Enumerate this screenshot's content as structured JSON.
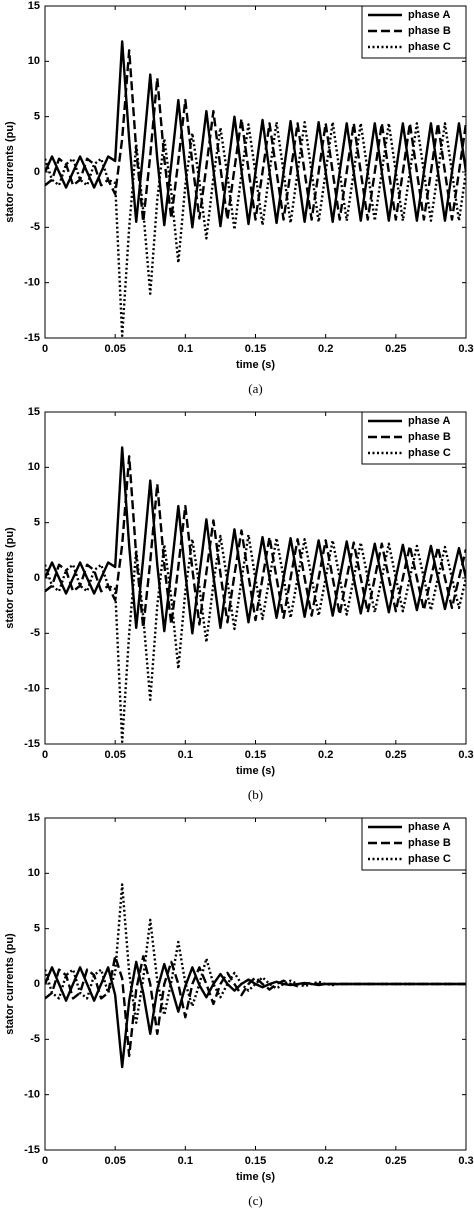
{
  "chart_data": [
    {
      "type": "line",
      "caption": "(a)",
      "xlabel": "time (s)",
      "ylabel": "stator currents (pu)",
      "x": [
        0,
        0.005,
        0.01,
        0.015,
        0.02,
        0.025,
        0.03,
        0.035,
        0.04,
        0.045,
        0.05,
        0.055,
        0.06,
        0.065,
        0.07,
        0.075,
        0.08,
        0.085,
        0.09,
        0.095,
        0.1,
        0.105,
        0.11,
        0.115,
        0.12,
        0.125,
        0.13,
        0.135,
        0.14,
        0.145,
        0.15,
        0.155,
        0.16,
        0.165,
        0.17,
        0.175,
        0.18,
        0.185,
        0.19,
        0.195,
        0.2,
        0.205,
        0.21,
        0.215,
        0.22,
        0.225,
        0.23,
        0.235,
        0.24,
        0.245,
        0.25,
        0.255,
        0.26,
        0.265,
        0.27,
        0.275,
        0.28,
        0.285,
        0.29,
        0.295,
        0.3
      ],
      "xlim": [
        0,
        0.3
      ],
      "ylim": [
        -15,
        15
      ],
      "xticks": [
        0,
        0.05,
        0.1,
        0.15,
        0.2,
        0.25,
        0.3
      ],
      "yticks": [
        -15,
        -10,
        -5,
        0,
        5,
        10,
        15
      ],
      "legend": "upper right",
      "series": [
        {
          "name": "phase A",
          "color": "#000000",
          "dash": "solid",
          "values": [
            0,
            1.4,
            0,
            -1.4,
            0,
            1.4,
            0,
            -1.4,
            0,
            1.4,
            1.0,
            11.8,
            2.9,
            -4.5,
            1.8,
            8.8,
            1.2,
            -4.8,
            0.7,
            6.5,
            0.4,
            -5.0,
            0.3,
            5.5,
            0.2,
            -4.9,
            0.1,
            5.0,
            0.1,
            -4.7,
            0,
            4.7,
            0,
            -4.6,
            0,
            4.6,
            0,
            -4.5,
            0,
            4.5,
            0,
            -4.5,
            0,
            4.4,
            0,
            -4.4,
            0,
            4.4,
            0,
            -4.4,
            0,
            4.4,
            0,
            -4.4,
            0,
            4.4,
            0,
            -4.4,
            0,
            4.4,
            0
          ]
        },
        {
          "name": "phase B",
          "color": "#000000",
          "dash": "dashed",
          "values": [
            -1.2,
            -0.7,
            1.2,
            0.7,
            -1.2,
            -0.7,
            1.2,
            0.7,
            -1.2,
            -0.7,
            -2.0,
            3.0,
            11.0,
            2.0,
            -4.5,
            1.5,
            8.5,
            1.2,
            -4.2,
            1.0,
            6.5,
            0.8,
            -4.2,
            0.5,
            5.5,
            0.4,
            -4.3,
            0.3,
            4.8,
            0.2,
            -4.3,
            0,
            4.4,
            0,
            -4.3,
            0,
            4.4,
            0,
            -4.3,
            0,
            4.4,
            0,
            -4.3,
            0,
            4.4,
            0,
            -4.3,
            0,
            4.4,
            0,
            -4.3,
            0,
            4.4,
            0,
            -4.3,
            0,
            4.4,
            0,
            -4.3,
            0,
            4.4
          ]
        },
        {
          "name": "phase C",
          "color": "#000000",
          "dash": "dotted",
          "values": [
            1.2,
            -0.7,
            -1.2,
            0.7,
            1.2,
            -0.7,
            -1.2,
            0.7,
            1.2,
            -0.7,
            -1.0,
            -14.8,
            -5.0,
            2.5,
            -3.5,
            -11.0,
            -2.5,
            3.0,
            -1.8,
            -8.2,
            -1.2,
            3.5,
            -0.8,
            -6.0,
            -0.5,
            4.0,
            -0.3,
            -5.2,
            -0.2,
            4.3,
            -0.1,
            -4.8,
            0,
            4.5,
            0,
            -4.6,
            0,
            4.5,
            0,
            -4.5,
            0,
            4.5,
            0,
            -4.4,
            0,
            4.4,
            0,
            -4.4,
            0,
            4.4,
            0,
            -4.4,
            0,
            4.4,
            0,
            -4.4,
            0,
            4.4,
            0,
            -4.4,
            0
          ]
        }
      ]
    },
    {
      "type": "line",
      "caption": "(b)",
      "xlabel": "time (s)",
      "ylabel": "stator currents (pu)",
      "x": [
        0,
        0.005,
        0.01,
        0.015,
        0.02,
        0.025,
        0.03,
        0.035,
        0.04,
        0.045,
        0.05,
        0.055,
        0.06,
        0.065,
        0.07,
        0.075,
        0.08,
        0.085,
        0.09,
        0.095,
        0.1,
        0.105,
        0.11,
        0.115,
        0.12,
        0.125,
        0.13,
        0.135,
        0.14,
        0.145,
        0.15,
        0.155,
        0.16,
        0.165,
        0.17,
        0.175,
        0.18,
        0.185,
        0.19,
        0.195,
        0.2,
        0.205,
        0.21,
        0.215,
        0.22,
        0.225,
        0.23,
        0.235,
        0.24,
        0.245,
        0.25,
        0.255,
        0.26,
        0.265,
        0.27,
        0.275,
        0.28,
        0.285,
        0.29,
        0.295,
        0.3
      ],
      "xlim": [
        0,
        0.3
      ],
      "ylim": [
        -15,
        15
      ],
      "xticks": [
        0,
        0.05,
        0.1,
        0.15,
        0.2,
        0.25,
        0.3
      ],
      "yticks": [
        -15,
        -10,
        -5,
        0,
        5,
        10,
        15
      ],
      "legend": "upper right",
      "series": [
        {
          "name": "phase A",
          "color": "#000000",
          "dash": "solid",
          "values": [
            0,
            1.4,
            0,
            -1.4,
            0,
            1.4,
            0,
            -1.4,
            0,
            1.4,
            1.0,
            11.8,
            2.9,
            -4.5,
            1.8,
            8.8,
            1.2,
            -4.8,
            0.7,
            6.5,
            0.4,
            -5.0,
            0.3,
            5.3,
            0.2,
            -4.5,
            0.1,
            4.4,
            0.1,
            -4.0,
            0,
            3.7,
            0,
            -3.6,
            0,
            3.6,
            0,
            -3.5,
            0,
            3.4,
            0,
            -3.4,
            0,
            3.3,
            0,
            -3.2,
            0,
            3.1,
            0,
            -3.1,
            0,
            3.0,
            0,
            -2.9,
            0,
            2.9,
            0,
            -2.8,
            0,
            2.7,
            0
          ]
        },
        {
          "name": "phase B",
          "color": "#000000",
          "dash": "dashed",
          "values": [
            -1.2,
            -0.7,
            1.2,
            0.7,
            -1.2,
            -0.7,
            1.2,
            0.7,
            -1.2,
            -0.7,
            -2.0,
            3.0,
            11.0,
            2.0,
            -4.5,
            1.5,
            8.5,
            1.2,
            -4.2,
            1.0,
            6.5,
            0.8,
            -4.2,
            0.5,
            5.2,
            0.4,
            -4.0,
            0.3,
            4.3,
            0.2,
            -3.8,
            0,
            3.7,
            0,
            -3.6,
            0,
            3.5,
            0,
            -3.4,
            0,
            3.4,
            0,
            -3.3,
            0,
            3.2,
            0,
            -3.1,
            0,
            3.1,
            0,
            -3.0,
            0,
            2.9,
            0,
            -2.9,
            0,
            2.8,
            0,
            -2.7,
            0,
            2.6
          ]
        },
        {
          "name": "phase C",
          "color": "#000000",
          "dash": "dotted",
          "values": [
            1.2,
            -0.7,
            -1.2,
            0.7,
            1.2,
            -0.7,
            -1.2,
            0.7,
            1.2,
            -0.7,
            -1.0,
            -14.8,
            -5.0,
            2.5,
            -3.5,
            -11.0,
            -2.5,
            3.0,
            -1.8,
            -8.2,
            -1.2,
            3.5,
            -0.8,
            -5.8,
            -0.5,
            3.8,
            -0.3,
            -4.6,
            -0.2,
            3.9,
            -0.1,
            -3.7,
            0,
            3.6,
            0,
            -3.6,
            0,
            3.5,
            0,
            -3.4,
            0,
            3.4,
            0,
            -3.3,
            0,
            3.2,
            0,
            -3.1,
            0,
            3.1,
            0,
            -3.0,
            0,
            2.9,
            0,
            -2.9,
            0,
            2.8,
            0,
            -2.7,
            0
          ]
        }
      ]
    },
    {
      "type": "line",
      "caption": "(c)",
      "xlabel": "time (s)",
      "ylabel": "stator currents (pu)",
      "x": [
        0,
        0.005,
        0.01,
        0.015,
        0.02,
        0.025,
        0.03,
        0.035,
        0.04,
        0.045,
        0.05,
        0.055,
        0.06,
        0.065,
        0.07,
        0.075,
        0.08,
        0.085,
        0.09,
        0.095,
        0.1,
        0.105,
        0.11,
        0.115,
        0.12,
        0.125,
        0.13,
        0.135,
        0.14,
        0.145,
        0.15,
        0.155,
        0.16,
        0.165,
        0.17,
        0.175,
        0.18,
        0.185,
        0.19,
        0.195,
        0.2,
        0.205,
        0.21,
        0.215,
        0.22,
        0.225,
        0.23,
        0.235,
        0.24,
        0.245,
        0.25,
        0.255,
        0.26,
        0.265,
        0.27,
        0.275,
        0.28,
        0.285,
        0.29,
        0.295,
        0.3
      ],
      "xlim": [
        0,
        0.3
      ],
      "ylim": [
        -15,
        15
      ],
      "xticks": [
        0,
        0.05,
        0.1,
        0.15,
        0.2,
        0.25,
        0.3
      ],
      "yticks": [
        -15,
        -10,
        -5,
        0,
        5,
        10,
        15
      ],
      "legend": "upper right",
      "series": [
        {
          "name": "phase A",
          "color": "#000000",
          "dash": "solid",
          "values": [
            0,
            1.5,
            0,
            -1.5,
            0,
            1.5,
            0,
            -1.5,
            0,
            1.5,
            -1.0,
            -7.5,
            -1.5,
            2.0,
            -0.8,
            -4.5,
            -0.5,
            1.8,
            -0.3,
            -2.5,
            -0.2,
            1.5,
            -0.1,
            -1.2,
            0,
            0.9,
            0,
            -0.6,
            0,
            0.4,
            0,
            -0.3,
            0,
            0.2,
            0,
            -0.1,
            0,
            0.1,
            0,
            -0.1,
            0,
            0,
            0,
            0,
            0,
            0,
            0,
            0,
            0,
            0,
            0,
            0,
            0,
            0,
            0,
            0,
            0,
            0,
            0,
            0,
            0
          ]
        },
        {
          "name": "phase B",
          "color": "#000000",
          "dash": "dashed",
          "values": [
            -1.3,
            -0.8,
            1.3,
            0.8,
            -1.3,
            -0.8,
            1.3,
            0.8,
            -1.3,
            -0.8,
            2.5,
            0.5,
            -6.5,
            -0.5,
            2.5,
            0,
            -4.5,
            0,
            2.0,
            0,
            -3.0,
            0,
            1.5,
            0,
            -1.8,
            0,
            1.0,
            0,
            -1.0,
            0,
            0.6,
            0,
            -0.5,
            0,
            0.3,
            0,
            -0.2,
            0,
            0.1,
            0,
            0,
            0,
            0,
            0,
            0,
            0,
            0,
            0,
            0,
            0,
            0,
            0,
            0,
            0,
            0,
            0,
            0,
            0,
            0,
            0,
            0
          ]
        },
        {
          "name": "phase C",
          "color": "#000000",
          "dash": "dotted",
          "values": [
            1.3,
            -0.8,
            -1.3,
            0.8,
            1.3,
            -0.8,
            -1.3,
            0.8,
            1.3,
            -0.8,
            1.0,
            9.0,
            1.0,
            -3.5,
            0.5,
            5.8,
            0.3,
            -2.8,
            0.2,
            3.8,
            0.1,
            -2.0,
            0,
            2.3,
            0,
            -1.2,
            0,
            1.0,
            0,
            -0.6,
            0,
            0.6,
            0,
            -0.4,
            0,
            0.3,
            0,
            -0.2,
            0,
            0.2,
            0,
            -0.1,
            0,
            0,
            0,
            0,
            0,
            0,
            0,
            0,
            0,
            0,
            0,
            0,
            0,
            0,
            0,
            0,
            0,
            0,
            0
          ]
        }
      ]
    }
  ]
}
